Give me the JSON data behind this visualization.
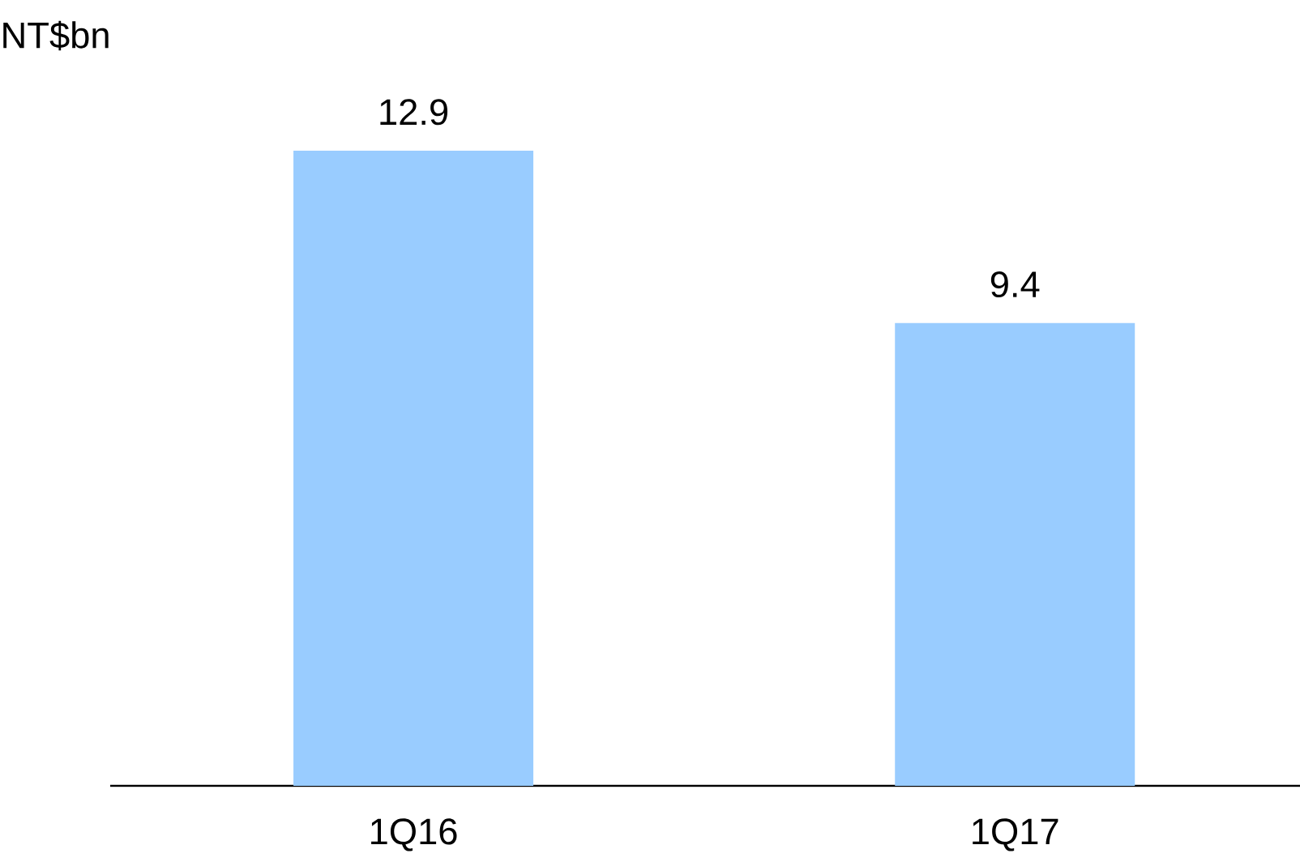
{
  "chart_data": {
    "type": "bar",
    "annotations": [
      "NT$bn"
    ],
    "categories": [
      "1Q16",
      "1Q17"
    ],
    "values": [
      12.9,
      9.4
    ],
    "color": "#99ccff",
    "data_labels": true
  }
}
